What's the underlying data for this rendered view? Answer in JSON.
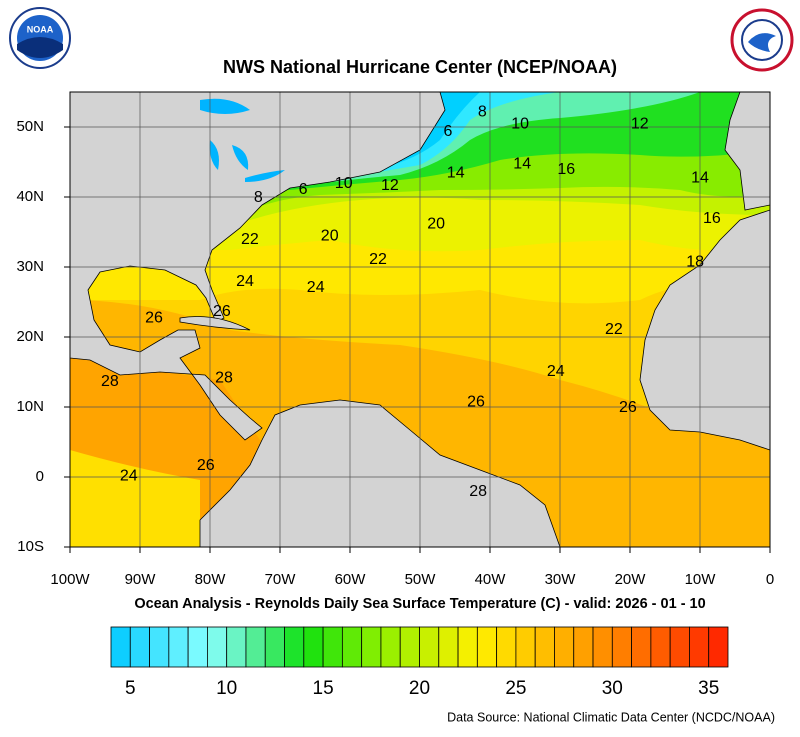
{
  "logos": {
    "noaa": "NOAA"
  },
  "title": "NWS National Hurricane Center (NCEP/NOAA)",
  "map": {
    "xlim": [
      -100,
      0
    ],
    "ylim": [
      -10,
      55
    ],
    "xticks": [
      {
        "value": -100,
        "label": "100W"
      },
      {
        "value": -90,
        "label": "90W"
      },
      {
        "value": -80,
        "label": "80W"
      },
      {
        "value": -70,
        "label": "70W"
      },
      {
        "value": -60,
        "label": "60W"
      },
      {
        "value": -50,
        "label": "50W"
      },
      {
        "value": -40,
        "label": "40W"
      },
      {
        "value": -30,
        "label": "30W"
      },
      {
        "value": -20,
        "label": "20W"
      },
      {
        "value": -10,
        "label": "10W"
      },
      0
    ],
    "yticks": [
      {
        "value": 50,
        "label": "50N"
      },
      {
        "value": 40,
        "label": "40N"
      },
      {
        "value": 30,
        "label": "30N"
      },
      {
        "value": 20,
        "label": "20N"
      },
      {
        "value": 10,
        "label": "10N"
      },
      0,
      {
        "value": -10,
        "label": "10S"
      }
    ],
    "grid": true,
    "contour_labels": [
      {
        "value": 8,
        "lon": -41.1,
        "lat": 52.1
      },
      {
        "value": 6,
        "lon": -46,
        "lat": 49.3
      },
      {
        "value": 10,
        "lon": -35.7,
        "lat": 50.4
      },
      {
        "value": 12,
        "lon": -18.6,
        "lat": 50.4
      },
      {
        "value": 14,
        "lon": -35.4,
        "lat": 44.7
      },
      {
        "value": 16,
        "lon": -29.1,
        "lat": 43.9
      },
      {
        "value": 14,
        "lon": -44.9,
        "lat": 43.4
      },
      {
        "value": 12,
        "lon": -54.3,
        "lat": 41.6
      },
      {
        "value": 10,
        "lon": -60.9,
        "lat": 41.9
      },
      {
        "value": 6,
        "lon": -66.7,
        "lat": 41
      },
      {
        "value": 8,
        "lon": -73.1,
        "lat": 39.9
      },
      {
        "value": 14,
        "lon": -10,
        "lat": 42.7
      },
      {
        "value": 16,
        "lon": -8.3,
        "lat": 36.9
      },
      {
        "value": 18,
        "lon": -10.7,
        "lat": 30.7
      },
      {
        "value": 20,
        "lon": -47.7,
        "lat": 36.1
      },
      {
        "value": 20,
        "lon": -62.9,
        "lat": 34.4
      },
      {
        "value": 22,
        "lon": -74.3,
        "lat": 33.9
      },
      {
        "value": 22,
        "lon": -56,
        "lat": 31
      },
      {
        "value": 24,
        "lon": -75,
        "lat": 27.9
      },
      {
        "value": 24,
        "lon": -64.9,
        "lat": 27
      },
      {
        "value": 26,
        "lon": -88,
        "lat": 22.7
      },
      {
        "value": 26,
        "lon": -78.3,
        "lat": 23.6
      },
      {
        "value": 22,
        "lon": -22.3,
        "lat": 21
      },
      {
        "value": 28,
        "lon": -94.3,
        "lat": 13.6
      },
      {
        "value": 28,
        "lon": -78,
        "lat": 14.1
      },
      {
        "value": 24,
        "lon": -30.6,
        "lat": 15
      },
      {
        "value": 26,
        "lon": -42,
        "lat": 10.7
      },
      {
        "value": 26,
        "lon": -20.3,
        "lat": 9.9
      },
      {
        "value": 24,
        "lon": -91.6,
        "lat": 0.1
      },
      {
        "value": 26,
        "lon": -80.6,
        "lat": 1.6
      },
      {
        "value": 28,
        "lon": -41.7,
        "lat": -2.1
      }
    ]
  },
  "subtitle": "Ocean Analysis - Reynolds Daily Sea Surface Temperature (C) - valid: 2026 - 01 - 10",
  "colorbar": {
    "min": 4,
    "max": 36,
    "ticks": [
      5,
      10,
      15,
      20,
      25,
      30,
      35
    ],
    "color_stops": [
      {
        "value": 4,
        "color": "#00c8ff"
      },
      {
        "value": 9,
        "color": "#88ffff"
      },
      {
        "value": 11,
        "color": "#60f0b0"
      },
      {
        "value": 14,
        "color": "#10e010"
      },
      {
        "value": 18,
        "color": "#90f000"
      },
      {
        "value": 23,
        "color": "#fff000"
      },
      {
        "value": 28,
        "color": "#ffa800"
      },
      {
        "value": 36,
        "color": "#ff2000"
      }
    ]
  },
  "source": "Data Source: National Climatic Data Center (NCDC/NOAA)"
}
